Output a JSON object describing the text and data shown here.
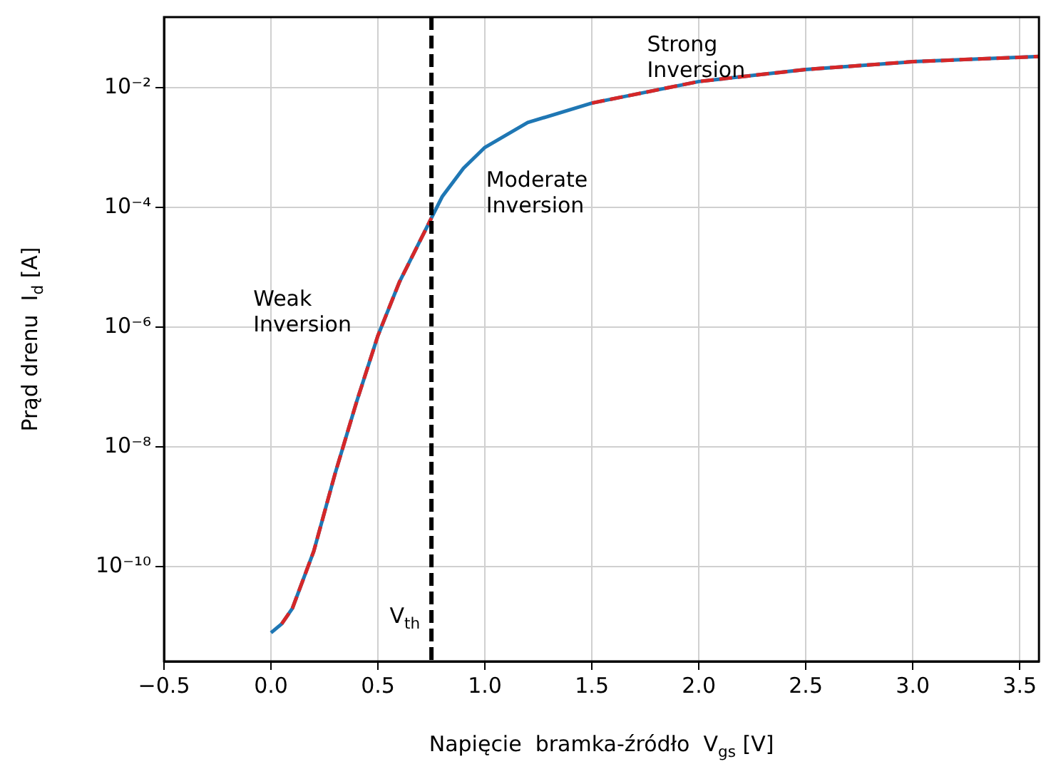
{
  "chart_data": {
    "type": "line",
    "xlabel": "Napięcie  bramka-źródło  V$_{gs}$ [V]",
    "ylabel": "Prąd drenu  I$_{d}$ [A]",
    "log": "y",
    "grid": true,
    "marker": "none",
    "xlim": [
      -0.5,
      3.59
    ],
    "ylim": [
      2.6e-12,
      0.15
    ],
    "xticks": [
      {
        "value": -0.5,
        "label": "−0.5"
      },
      {
        "value": 0,
        "label": "0.0"
      },
      {
        "value": 0.5,
        "label": "0.5"
      },
      {
        "value": 1,
        "label": "1.0"
      },
      {
        "value": 1.5,
        "label": "1.5"
      },
      {
        "value": 2,
        "label": "2.0"
      },
      {
        "value": 2.5,
        "label": "2.5"
      },
      {
        "value": 3,
        "label": "3.0"
      },
      {
        "value": 3.5,
        "label": "3.5"
      }
    ],
    "yticks": [
      {
        "value": 1e-10,
        "label": "10⁻¹⁰"
      },
      {
        "value": 1e-08,
        "label": "10⁻⁸"
      },
      {
        "value": 1e-06,
        "label": "10⁻⁶"
      },
      {
        "value": 0.0001,
        "label": "10⁻⁴"
      },
      {
        "value": 0.01,
        "label": "10⁻²"
      }
    ],
    "series": [
      {
        "color": "#1f77b4",
        "line_style": "solid",
        "x": [
          0,
          0.05,
          0.1,
          0.2,
          0.3,
          0.4,
          0.5,
          0.6,
          0.7,
          0.75,
          0.8,
          0.9,
          1.0,
          1.2,
          1.5,
          2.0,
          2.5,
          3.0,
          3.59
        ],
        "values": [
          7.8e-12,
          1.1e-11,
          2e-11,
          1.8e-10,
          3.6e-09,
          5.6e-08,
          7.2e-07,
          5.6e-06,
          2.9e-05,
          6.6e-05,
          0.00015,
          0.00045,
          0.001,
          0.0026,
          0.0055,
          0.0126,
          0.02,
          0.027,
          0.033
        ]
      },
      {
        "color": "#d62728",
        "line_style": "dashed",
        "x": [
          0.05,
          0.1,
          0.2,
          0.3,
          0.4,
          0.5,
          0.6,
          0.7,
          0.75,
          1.1,
          1.5,
          2.0,
          2.5,
          3.0,
          3.59
        ],
        "values": [
          1.1e-11,
          2e-11,
          1.8e-10,
          3.6e-09,
          5.6e-08,
          7.2e-07,
          5.6e-06,
          2.9e-05,
          6.6e-05,
          null,
          0.0055,
          0.0126,
          0.02,
          0.027,
          0.033
        ]
      }
    ],
    "ref_lines": [
      {
        "axis": "x",
        "value": 0.75,
        "label": "V$_{th}$",
        "color": "#000000",
        "line_style": "dashed"
      }
    ],
    "annotations": [
      "Weak\nInversion",
      "Moderate\nInversion",
      "Strong\nInversion"
    ]
  }
}
